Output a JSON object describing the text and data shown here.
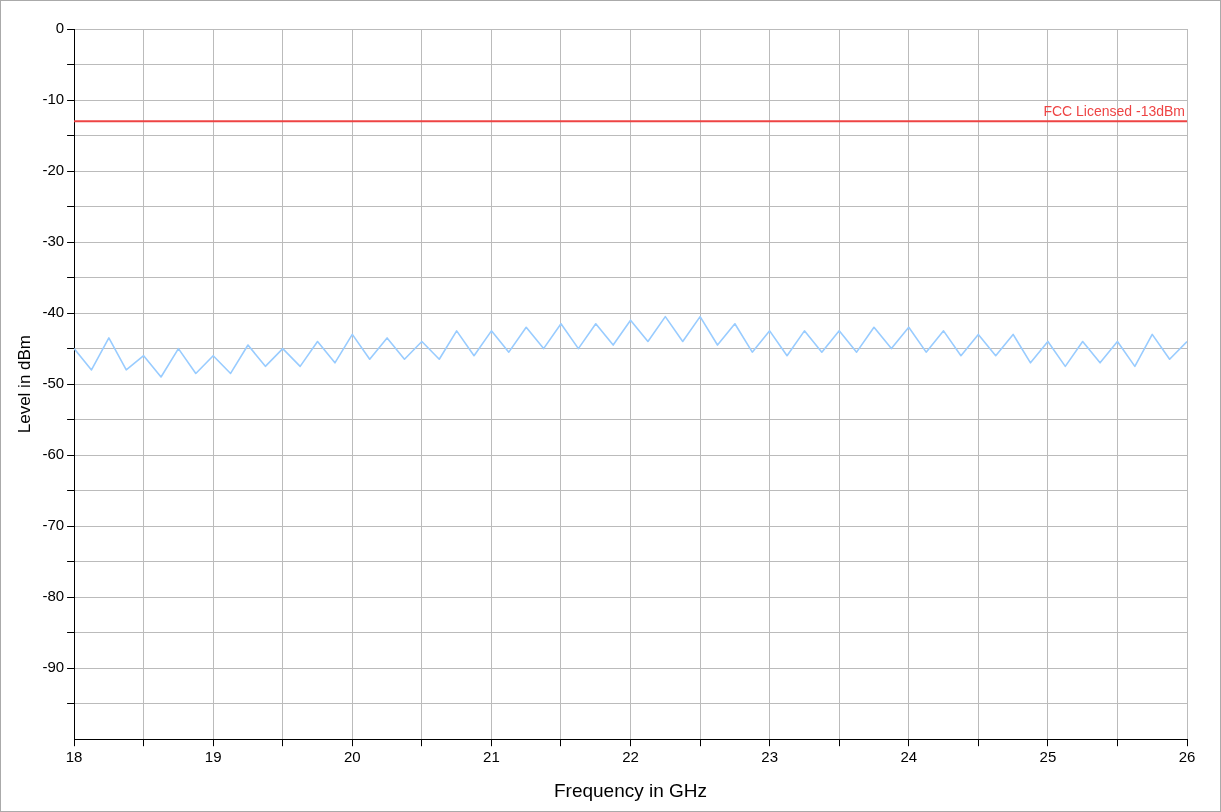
{
  "chart_data": {
    "type": "line",
    "xlabel": "Frequency in GHz",
    "ylabel": "Level in dBm",
    "xlim": [
      18,
      26
    ],
    "xticks": [
      18,
      {
        "value": 18.5,
        "label": null
      },
      19,
      {
        "value": 19.5,
        "label": null
      },
      20,
      {
        "value": 20.5,
        "label": null
      },
      21,
      {
        "value": 21.5,
        "label": null
      },
      22,
      {
        "value": 22.5,
        "label": null
      },
      23,
      {
        "value": 23.5,
        "label": null
      },
      24,
      {
        "value": 24.5,
        "label": null
      },
      25,
      {
        "value": 25.5,
        "label": null
      },
      26
    ],
    "ylim": [
      -100,
      0
    ],
    "yticks": [
      0,
      {
        "value": -5,
        "label": null
      },
      -10,
      {
        "value": -15,
        "label": null
      },
      -20,
      {
        "value": -25,
        "label": null
      },
      -30,
      {
        "value": -35,
        "label": null
      },
      -40,
      {
        "value": -45,
        "label": null
      },
      -50,
      {
        "value": -55,
        "label": null
      },
      -60,
      {
        "value": -65,
        "label": null
      },
      -70,
      {
        "value": -75,
        "label": null
      },
      -80,
      {
        "value": -85,
        "label": null
      },
      -90,
      {
        "value": -95,
        "label": null
      }
    ],
    "grid": true,
    "legend": false,
    "marker": "none",
    "line_style": "solid",
    "series": [
      {
        "color": "#99ccff",
        "x": [
          18,
          18.125,
          18.25,
          18.375,
          18.5,
          18.625,
          18.75,
          18.875,
          19,
          19.125,
          19.25,
          19.375,
          19.5,
          19.625,
          19.75,
          19.875,
          20,
          20.125,
          20.25,
          20.375,
          20.5,
          20.625,
          20.75,
          20.875,
          21,
          21.125,
          21.25,
          21.375,
          21.5,
          21.625,
          21.75,
          21.875,
          22,
          22.125,
          22.25,
          22.375,
          22.5,
          22.625,
          22.75,
          22.875,
          23,
          23.125,
          23.25,
          23.375,
          23.5,
          23.625,
          23.75,
          23.875,
          24,
          24.125,
          24.25,
          24.375,
          24.5,
          24.625,
          24.75,
          24.875,
          25,
          25.125,
          25.25,
          25.375,
          25.5,
          25.625,
          25.75,
          25.875,
          26
        ],
        "values": [
          -45,
          -48,
          -43.5,
          -48,
          -46,
          -49,
          -45,
          -48.5,
          -46,
          -48.5,
          -44.5,
          -47.5,
          -45,
          -47.5,
          -44,
          -47,
          -43,
          -46.5,
          -43.5,
          -46.5,
          -44,
          -46.5,
          -42.5,
          -46,
          -42.5,
          -45.5,
          -42,
          -45,
          -41.5,
          -45,
          -41.5,
          -44.5,
          -41,
          -44,
          -40.5,
          -44,
          -40.5,
          -44.5,
          -41.5,
          -45.5,
          -42.5,
          -46,
          -42.5,
          -45.5,
          -42.5,
          -45.5,
          -42,
          -45,
          -42,
          -45.5,
          -42.5,
          -46,
          -43,
          -46,
          -43,
          -47,
          -44,
          -47.5,
          -44,
          -47,
          -44,
          -47.5,
          -43,
          -46.5,
          -44
        ]
      }
    ],
    "ref_lines": [
      {
        "axis": "y",
        "value": -13,
        "label": "FCC Licensed -13dBm",
        "color": "#ee4444"
      }
    ]
  }
}
